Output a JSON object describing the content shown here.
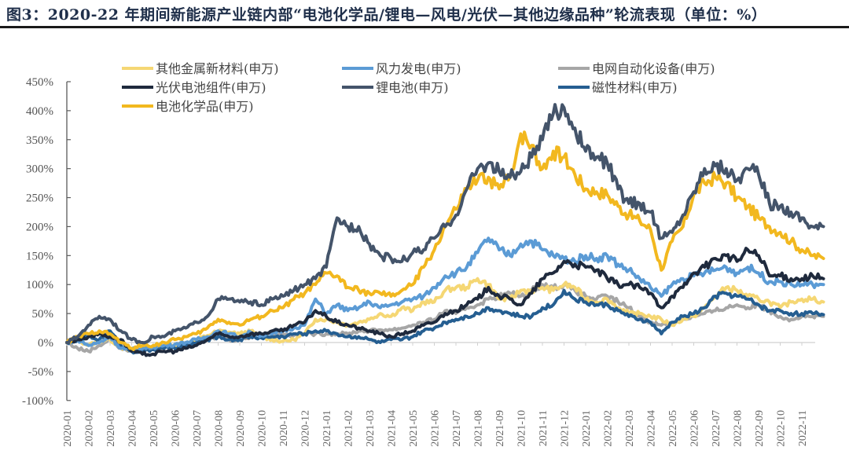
{
  "header": {
    "title": "图3：2020-22 年期间新能源产业链内部“电池化学品/锂电—风电/光伏—其他边缘品种”轮流表现（单位：%）"
  },
  "chart_data": {
    "type": "line",
    "title": "图3：2020-22 年期间新能源产业链内部“电池化学品/锂电—风电/光伏—其他边缘品种”轮流表现（单位：%）",
    "xlabel": "",
    "ylabel": "",
    "ylim": [
      -100,
      450
    ],
    "yticks": [
      "-100%",
      "-50%",
      "0%",
      "50%",
      "100%",
      "150%",
      "200%",
      "250%",
      "300%",
      "350%",
      "400%",
      "450%"
    ],
    "ytick_values": [
      -100,
      -50,
      0,
      50,
      100,
      150,
      200,
      250,
      300,
      350,
      400,
      450
    ],
    "xticks": [
      "2020-01",
      "2020-02",
      "2020-03",
      "2020-04",
      "2020-05",
      "2020-06",
      "2020-07",
      "2020-08",
      "2020-09",
      "2020-10",
      "2020-11",
      "2020-12",
      "2021-01",
      "2021-02",
      "2021-03",
      "2021-04",
      "2021-05",
      "2021-06",
      "2021-07",
      "2021-08",
      "2021-09",
      "2021-10",
      "2021-11",
      "2021-12",
      "2022-01",
      "2022-02",
      "2022-03",
      "2022-04",
      "2022-05",
      "2022-06",
      "2022-07",
      "2022-08",
      "2022-09",
      "2022-10",
      "2022-11"
    ],
    "x_unit": "month index from 2020-01 (0 = 2020-01)",
    "grid": false,
    "legend_position": "top",
    "x": [
      0,
      0.5,
      1,
      1.5,
      2,
      2.5,
      3,
      3.5,
      4,
      4.5,
      5,
      5.5,
      6,
      6.5,
      7,
      7.5,
      8,
      8.5,
      9,
      9.5,
      10,
      10.5,
      11,
      11.5,
      12,
      12.5,
      13,
      13.5,
      14,
      14.5,
      15,
      15.5,
      16,
      16.5,
      17,
      17.5,
      18,
      18.5,
      19,
      19.5,
      20,
      20.5,
      21,
      21.5,
      22,
      22.5,
      23,
      23.5,
      24,
      24.5,
      25,
      25.5,
      26,
      26.5,
      27,
      27.5,
      28,
      28.5,
      29,
      29.5,
      30,
      30.5,
      31,
      31.5,
      32,
      32.5,
      33,
      33.5,
      34,
      34.5,
      35
    ],
    "series": [
      {
        "name": "其他金属新材料(申万)",
        "color": "#f5d774",
        "values": [
          0,
          5,
          -5,
          3,
          5,
          -8,
          -15,
          -12,
          -10,
          -5,
          -5,
          0,
          5,
          12,
          20,
          18,
          15,
          20,
          10,
          5,
          2,
          5,
          15,
          40,
          40,
          35,
          30,
          35,
          40,
          50,
          45,
          60,
          55,
          70,
          70,
          90,
          95,
          95,
          110,
          100,
          75,
          75,
          90,
          90,
          95,
          90,
          100,
          95,
          75,
          70,
          75,
          60,
          50,
          50,
          45,
          40,
          30,
          40,
          45,
          60,
          80,
          95,
          90,
          80,
          75,
          70,
          60,
          70,
          75,
          75,
          70
        ]
      },
      {
        "name": "风力发电(申万)",
        "color": "#5b9bd5",
        "values": [
          0,
          5,
          -5,
          0,
          10,
          -10,
          -12,
          -10,
          -8,
          -5,
          -3,
          0,
          5,
          10,
          20,
          15,
          10,
          18,
          12,
          15,
          20,
          25,
          30,
          75,
          50,
          65,
          55,
          60,
          70,
          60,
          65,
          70,
          75,
          80,
          95,
          115,
          120,
          130,
          155,
          180,
          160,
          150,
          170,
          175,
          160,
          150,
          145,
          140,
          150,
          145,
          150,
          135,
          125,
          110,
          95,
          80,
          100,
          110,
          115,
          120,
          125,
          130,
          120,
          130,
          120,
          105,
          105,
          100,
          100,
          100,
          100
        ]
      },
      {
        "name": "电网自动化设备(申万)",
        "color": "#a6a6a6",
        "values": [
          0,
          -10,
          -15,
          -5,
          5,
          -10,
          -15,
          -12,
          -10,
          -8,
          -5,
          -3,
          0,
          5,
          10,
          5,
          5,
          10,
          15,
          10,
          15,
          12,
          15,
          15,
          15,
          15,
          15,
          20,
          20,
          22,
          22,
          25,
          30,
          35,
          40,
          55,
          50,
          60,
          65,
          75,
          80,
          85,
          80,
          90,
          100,
          95,
          100,
          90,
          80,
          75,
          80,
          70,
          60,
          45,
          35,
          30,
          35,
          40,
          45,
          50,
          55,
          60,
          65,
          60,
          65,
          55,
          45,
          40,
          45,
          45,
          45
        ]
      },
      {
        "name": "光伏电池组件(申万)",
        "color": "#1f2a3d",
        "values": [
          0,
          5,
          10,
          15,
          10,
          5,
          -15,
          -20,
          -20,
          -15,
          -15,
          -10,
          -5,
          5,
          15,
          10,
          10,
          15,
          15,
          20,
          20,
          30,
          35,
          55,
          45,
          35,
          30,
          25,
          20,
          15,
          10,
          15,
          20,
          30,
          35,
          50,
          55,
          65,
          75,
          95,
          80,
          75,
          65,
          85,
          110,
          120,
          140,
          135,
          130,
          125,
          110,
          100,
          100,
          95,
          85,
          60,
          80,
          95,
          120,
          130,
          145,
          150,
          140,
          160,
          150,
          115,
          115,
          110,
          110,
          115,
          110
        ]
      },
      {
        "name": "锂电池(申万)",
        "color": "#44546a",
        "values": [
          0,
          10,
          30,
          45,
          40,
          20,
          5,
          0,
          10,
          10,
          20,
          25,
          35,
          45,
          75,
          75,
          70,
          70,
          65,
          75,
          80,
          90,
          100,
          110,
          130,
          215,
          200,
          200,
          170,
          150,
          145,
          140,
          155,
          160,
          180,
          200,
          220,
          265,
          300,
          310,
          295,
          285,
          295,
          320,
          350,
          395,
          405,
          370,
          330,
          320,
          310,
          265,
          240,
          240,
          225,
          180,
          190,
          220,
          260,
          300,
          305,
          300,
          280,
          300,
          290,
          240,
          235,
          225,
          215,
          200,
          200
        ]
      },
      {
        "name": "磁性材料(申万)",
        "color": "#255e91",
        "values": [
          0,
          5,
          10,
          5,
          20,
          -5,
          -15,
          -15,
          -12,
          -10,
          -10,
          -5,
          0,
          5,
          10,
          5,
          5,
          10,
          8,
          10,
          10,
          15,
          15,
          20,
          20,
          15,
          10,
          10,
          5,
          0,
          5,
          5,
          10,
          20,
          25,
          35,
          40,
          45,
          50,
          60,
          55,
          50,
          45,
          45,
          60,
          65,
          90,
          75,
          70,
          65,
          65,
          55,
          45,
          40,
          35,
          15,
          35,
          45,
          50,
          60,
          80,
          85,
          80,
          75,
          65,
          55,
          55,
          50,
          50,
          50,
          48
        ]
      },
      {
        "name": "电池化学品(申万)",
        "color": "#f2b81f",
        "values": [
          0,
          10,
          15,
          20,
          15,
          0,
          -10,
          -5,
          -5,
          0,
          5,
          10,
          15,
          25,
          40,
          35,
          30,
          40,
          45,
          55,
          60,
          75,
          85,
          100,
          120,
          115,
          95,
          90,
          85,
          85,
          80,
          90,
          100,
          130,
          160,
          200,
          230,
          265,
          280,
          285,
          265,
          285,
          360,
          340,
          300,
          330,
          320,
          290,
          265,
          260,
          255,
          235,
          220,
          210,
          195,
          125,
          175,
          200,
          255,
          275,
          285,
          275,
          250,
          235,
          215,
          200,
          190,
          175,
          160,
          150,
          145
        ]
      }
    ]
  },
  "legend": [
    {
      "label": "其他金属新材料(申万)",
      "color": "#f5d774"
    },
    {
      "label": "风力发电(申万)",
      "color": "#5b9bd5"
    },
    {
      "label": "电网自动化设备(申万)",
      "color": "#a6a6a6"
    },
    {
      "label": "光伏电池组件(申万)",
      "color": "#1f2a3d"
    },
    {
      "label": "锂电池(申万)",
      "color": "#44546a"
    },
    {
      "label": "磁性材料(申万)",
      "color": "#255e91"
    },
    {
      "label": "电池化学品(申万)",
      "color": "#f2b81f"
    }
  ]
}
